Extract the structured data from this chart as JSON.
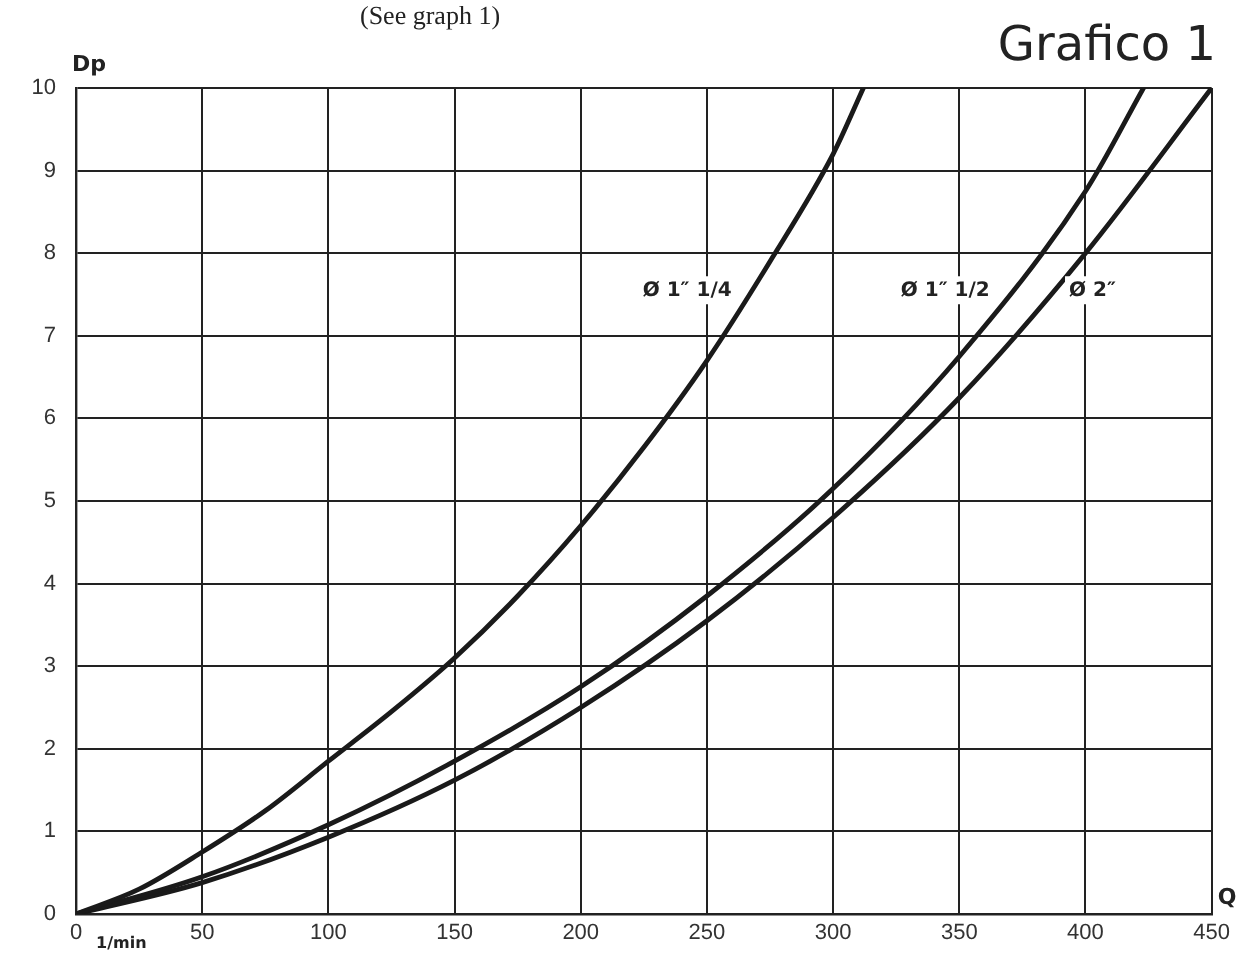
{
  "chart_data": {
    "type": "line",
    "title": "Grafico 1",
    "xlabel": "Q",
    "ylabel": "Dp",
    "annotations": [
      "(See graph 1)",
      "1/min"
    ],
    "xlim": [
      0,
      450
    ],
    "xticks": [
      0,
      50,
      100,
      150,
      200,
      250,
      300,
      350,
      400,
      450
    ],
    "ylim": [
      0,
      10
    ],
    "yticks": [
      0,
      1,
      2,
      3,
      4,
      5,
      6,
      7,
      8,
      9,
      10
    ],
    "grid": true,
    "legend": false,
    "marker": "none",
    "line_style": "solid",
    "series": [
      {
        "name": "Ø 1″ 1/4",
        "color": "#1a1a1a",
        "x": [
          0,
          25,
          50,
          75,
          100,
          125,
          150,
          175,
          200,
          225,
          250,
          275,
          300,
          312
        ],
        "values": [
          0,
          0.3,
          0.75,
          1.25,
          1.85,
          2.45,
          3.1,
          3.85,
          4.7,
          5.65,
          6.7,
          7.9,
          9.2,
          10
        ]
      },
      {
        "name": "Ø 1″ 1/2",
        "color": "#1a1a1a",
        "x": [
          0,
          50,
          100,
          150,
          200,
          250,
          300,
          350,
          400,
          423
        ],
        "values": [
          0,
          0.45,
          1.08,
          1.85,
          2.75,
          3.85,
          5.15,
          6.75,
          8.75,
          10
        ]
      },
      {
        "name": "Ø 2″",
        "color": "#1a1a1a",
        "x": [
          0,
          50,
          100,
          150,
          200,
          250,
          300,
          350,
          400,
          450
        ],
        "values": [
          0,
          0.38,
          0.93,
          1.62,
          2.5,
          3.55,
          4.8,
          6.25,
          8,
          10
        ]
      }
    ]
  }
}
